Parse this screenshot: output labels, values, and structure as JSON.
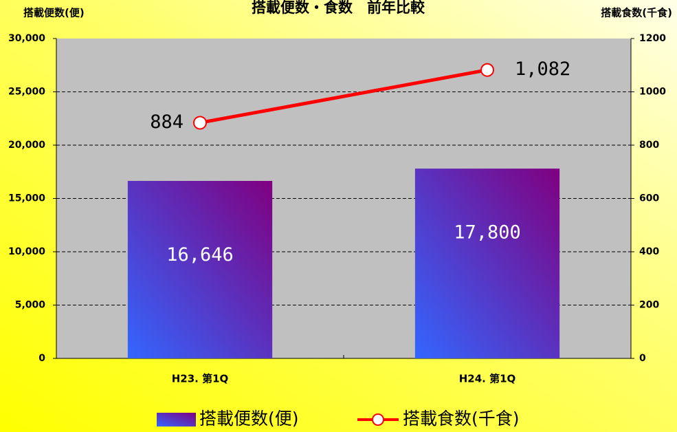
{
  "chart_data": {
    "type": "bar",
    "title": "搭載便数・食数　前年比較",
    "y_label": "搭載便数(便)",
    "y2_label": "搭載食数(千食)",
    "categories": [
      "H23. 第1Q",
      "H24. 第1Q"
    ],
    "series": [
      {
        "name": "搭載便数(便)",
        "type": "bar",
        "color": "#3366ff",
        "color2": "#800080",
        "values": [
          16646,
          17800
        ],
        "value_labels": [
          "16,646",
          "17,800"
        ]
      },
      {
        "name": "搭載食数(千食)",
        "type": "line",
        "axis": "y2",
        "color": "#ff0000",
        "values": [
          884,
          1082
        ],
        "value_labels": [
          "884",
          "1,082"
        ]
      }
    ],
    "ylim": [
      0,
      30000
    ],
    "yticks": [
      0,
      {
        "value": 5000,
        "label": "5,000"
      },
      {
        "value": 10000,
        "label": "10,000"
      },
      {
        "value": 15000,
        "label": "15,000"
      },
      {
        "value": 20000,
        "label": "20,000"
      },
      {
        "value": 25000,
        "label": "25,000"
      },
      {
        "value": 30000,
        "label": "30,000"
      }
    ],
    "y2lim": [
      0,
      1200
    ],
    "y2ticks": [
      0,
      200,
      400,
      600,
      800,
      1000,
      1200
    ],
    "grid": true,
    "legend": "bottom"
  }
}
